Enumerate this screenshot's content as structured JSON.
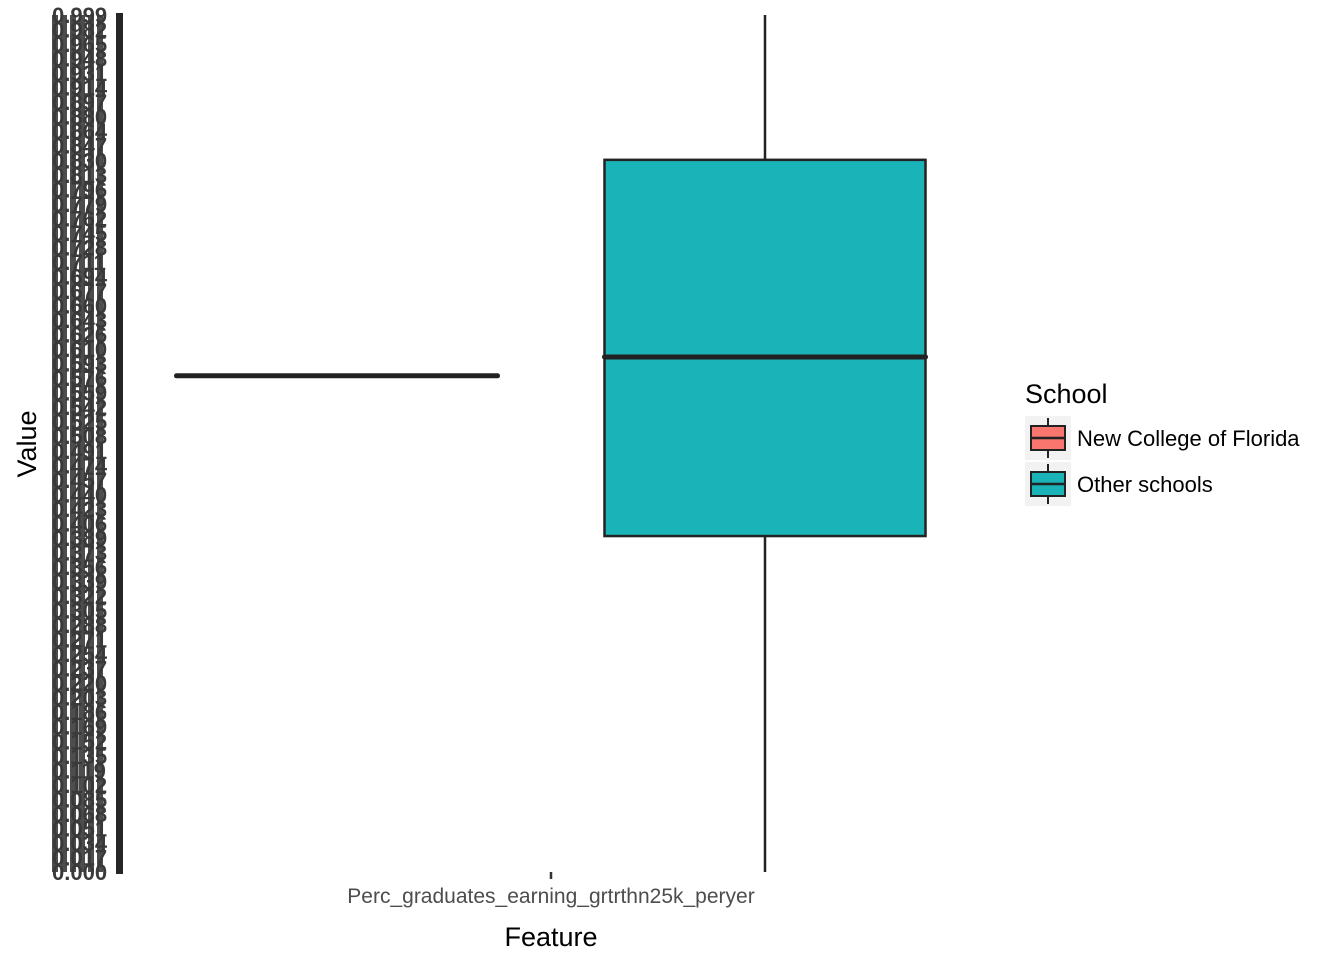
{
  "chart_data": {
    "type": "boxplot",
    "title": "",
    "xlabel": "Feature",
    "ylabel": "Value",
    "categories": [
      "Perc_graduates_earning_grtrthn25k_peryer"
    ],
    "ylim": [
      0,
      1
    ],
    "legend": {
      "title": "School",
      "placement": "right",
      "entries": [
        {
          "name": "New College of Florida",
          "color": "#F8766D"
        },
        {
          "name": "Other schools",
          "color": "#19B3B8"
        }
      ]
    },
    "series": [
      {
        "name": "New College of Florida",
        "color": "#F8766D",
        "min": 0.579,
        "q1": 0.579,
        "median": 0.579,
        "q3": 0.579,
        "max": 0.579
      },
      {
        "name": "Other schools",
        "color": "#19B3B8",
        "min": 0.0,
        "q1": 0.392,
        "median": 0.601,
        "q3": 0.831,
        "max": 1.0
      }
    ],
    "y_tick_labels_overlapping": true
  }
}
